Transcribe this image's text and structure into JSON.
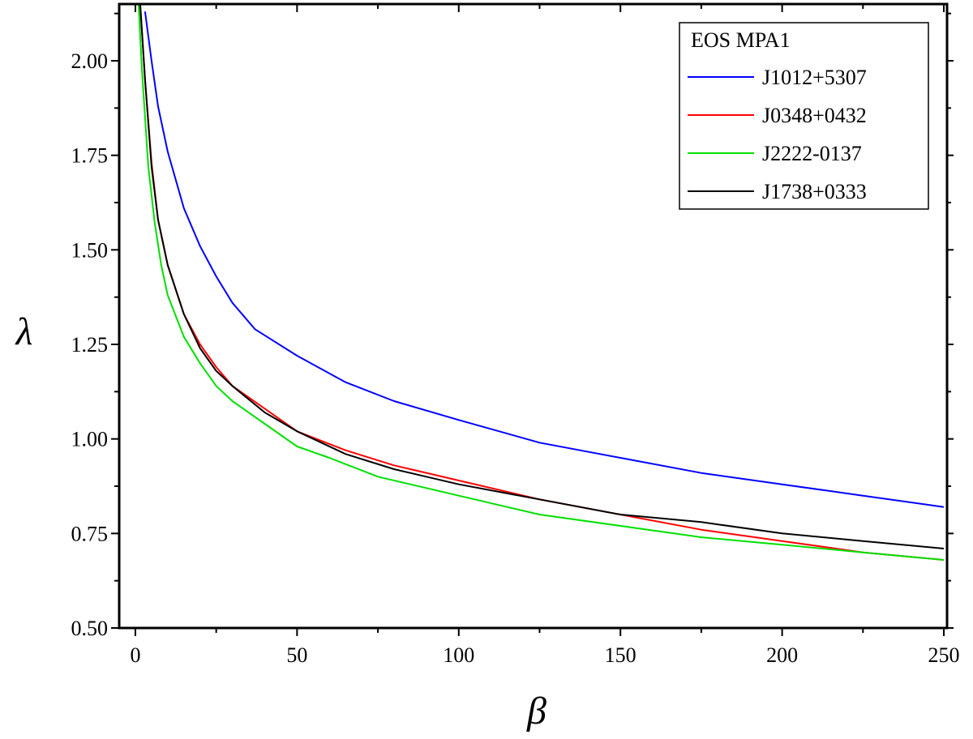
{
  "chart_data": {
    "type": "line",
    "xlabel": "β",
    "ylabel": "λ",
    "xlim": [
      -5,
      251
    ],
    "ylim": [
      0.5,
      2.15
    ],
    "x_ticks": [
      0,
      50,
      100,
      150,
      200,
      250
    ],
    "y_ticks": [
      0.5,
      0.75,
      1.0,
      1.25,
      1.5,
      1.75,
      2.0
    ],
    "x_tick_labels": [
      "0",
      "50",
      "100",
      "150",
      "200",
      "250"
    ],
    "y_tick_labels": [
      "0.50",
      "0.75",
      "1.00",
      "1.25",
      "1.50",
      "1.75",
      "2.00"
    ],
    "grid": false,
    "legend": {
      "title": "EOS  MPA1",
      "placement": "top-right"
    },
    "series": [
      {
        "name": "J1012+5307",
        "color": "#0000ff",
        "points": [
          [
            3,
            2.13
          ],
          [
            5,
            2.0
          ],
          [
            7,
            1.88
          ],
          [
            10,
            1.76
          ],
          [
            15,
            1.61
          ],
          [
            20,
            1.51
          ],
          [
            25,
            1.43
          ],
          [
            30,
            1.36
          ],
          [
            37,
            1.29
          ],
          [
            50,
            1.22
          ],
          [
            65,
            1.15
          ],
          [
            80,
            1.1
          ],
          [
            100,
            1.05
          ],
          [
            125,
            0.99
          ],
          [
            150,
            0.95
          ],
          [
            175,
            0.91
          ],
          [
            200,
            0.88
          ],
          [
            225,
            0.85
          ],
          [
            250,
            0.82
          ]
        ]
      },
      {
        "name": "J0348+0432",
        "color": "#ff0000",
        "points": [
          [
            1.5,
            2.15
          ],
          [
            3,
            1.95
          ],
          [
            5,
            1.73
          ],
          [
            7,
            1.58
          ],
          [
            10,
            1.46
          ],
          [
            15,
            1.33
          ],
          [
            20,
            1.25
          ],
          [
            25,
            1.19
          ],
          [
            30,
            1.14
          ],
          [
            40,
            1.08
          ],
          [
            50,
            1.02
          ],
          [
            65,
            0.97
          ],
          [
            80,
            0.93
          ],
          [
            100,
            0.89
          ],
          [
            125,
            0.84
          ],
          [
            150,
            0.8
          ],
          [
            175,
            0.76
          ],
          [
            200,
            0.73
          ],
          [
            225,
            0.7
          ],
          [
            250,
            0.68
          ]
        ]
      },
      {
        "name": "J2222-0137",
        "color": "#00e000",
        "points": [
          [
            1,
            2.15
          ],
          [
            2,
            1.98
          ],
          [
            4,
            1.72
          ],
          [
            6,
            1.57
          ],
          [
            8,
            1.46
          ],
          [
            10,
            1.38
          ],
          [
            15,
            1.27
          ],
          [
            20,
            1.2
          ],
          [
            25,
            1.14
          ],
          [
            30,
            1.1
          ],
          [
            40,
            1.04
          ],
          [
            50,
            0.98
          ],
          [
            60,
            0.95
          ],
          [
            75,
            0.9
          ],
          [
            100,
            0.85
          ],
          [
            125,
            0.8
          ],
          [
            150,
            0.77
          ],
          [
            175,
            0.74
          ],
          [
            200,
            0.72
          ],
          [
            225,
            0.7
          ],
          [
            250,
            0.68
          ]
        ]
      },
      {
        "name": "J1738+0333",
        "color": "#000000",
        "points": [
          [
            1.5,
            2.15
          ],
          [
            3,
            1.95
          ],
          [
            5,
            1.72
          ],
          [
            7,
            1.58
          ],
          [
            10,
            1.46
          ],
          [
            15,
            1.33
          ],
          [
            20,
            1.24
          ],
          [
            25,
            1.18
          ],
          [
            30,
            1.14
          ],
          [
            40,
            1.07
          ],
          [
            50,
            1.02
          ],
          [
            65,
            0.96
          ],
          [
            80,
            0.92
          ],
          [
            100,
            0.88
          ],
          [
            125,
            0.84
          ],
          [
            150,
            0.8
          ],
          [
            175,
            0.78
          ],
          [
            200,
            0.75
          ],
          [
            225,
            0.73
          ],
          [
            250,
            0.71
          ]
        ]
      }
    ]
  }
}
